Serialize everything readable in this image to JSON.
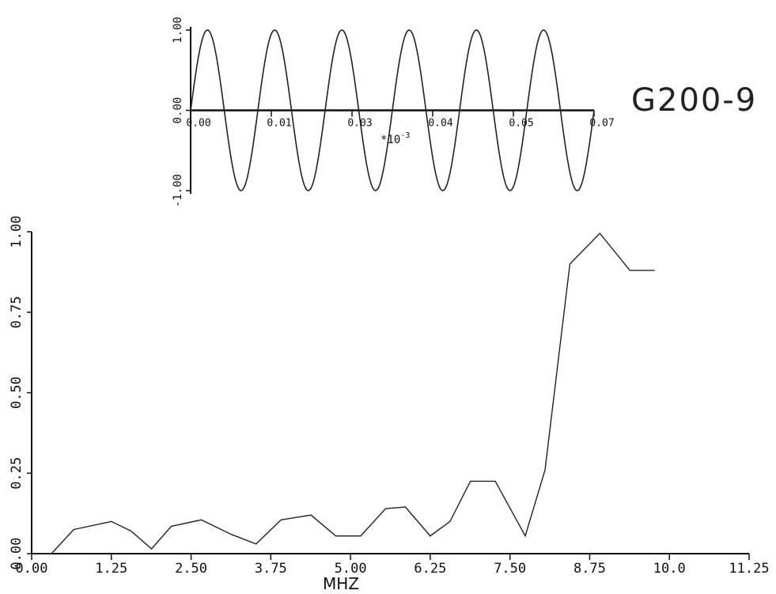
{
  "plot_tag": "G200-9",
  "chart_data": [
    {
      "type": "line",
      "name": "time-domain-waveform",
      "title": "",
      "xlabel": "",
      "ylabel": "",
      "x_multiplier_label": "*10",
      "x_multiplier_exponent": "-3",
      "x_ticks": [
        "0.00",
        "0.01",
        "0.03",
        "0.04",
        "0.05",
        "0.07"
      ],
      "y_ticks": [
        "1.00",
        "0.00",
        "-1.00"
      ],
      "xlim": [
        0,
        0.07
      ],
      "ylim": [
        -1,
        1
      ],
      "waveform": {
        "shape": "sine",
        "amplitude": 1.0,
        "cycles": 6,
        "x_start": 0.0,
        "x_end": 0.07
      },
      "grid": false
    },
    {
      "type": "line",
      "name": "frequency-spectrum",
      "title": "",
      "xlabel": "MHZ",
      "ylabel": "",
      "x_ticks": [
        "0.00",
        "1.25",
        "2.50",
        "3.75",
        "5.00",
        "6.25",
        "7.50",
        "8.75",
        "10.0",
        "11.25"
      ],
      "y_ticks": [
        "0.00",
        "0.25",
        "0.50",
        "0.75",
        "1.00"
      ],
      "xlim": [
        0,
        11.25
      ],
      "ylim": [
        0,
        1
      ],
      "grid": false,
      "series": [
        {
          "x": [
            0.0,
            0.31,
            0.66,
            1.25,
            1.56,
            1.88,
            2.19,
            2.66,
            3.13,
            3.52,
            3.91,
            4.38,
            4.77,
            5.16,
            5.55,
            5.86,
            6.25,
            6.56,
            6.88,
            7.27,
            7.74,
            8.05,
            8.44,
            8.91,
            9.38,
            9.77
          ],
          "y": [
            0.0,
            0.0,
            0.075,
            0.1,
            0.07,
            0.015,
            0.085,
            0.105,
            0.06,
            0.03,
            0.105,
            0.12,
            0.055,
            0.055,
            0.14,
            0.145,
            0.055,
            0.1,
            0.225,
            0.225,
            0.055,
            0.26,
            0.9,
            0.995,
            0.88,
            0.88
          ]
        }
      ]
    }
  ]
}
